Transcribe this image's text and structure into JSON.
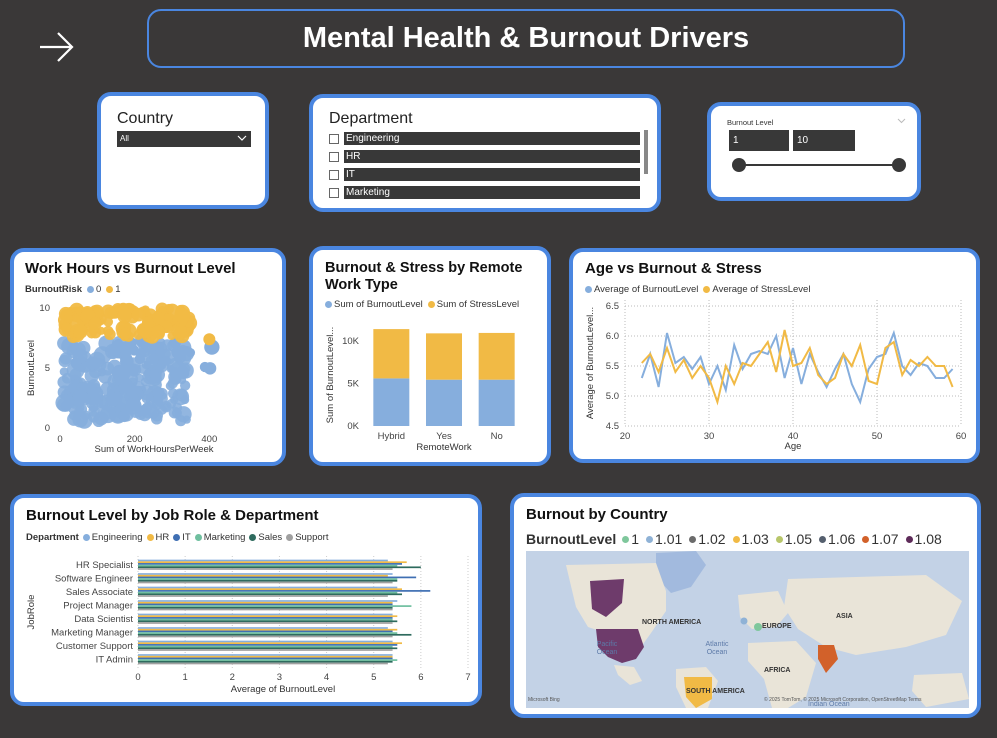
{
  "header": {
    "title": "Mental Health & Burnout Drivers"
  },
  "country_slicer": {
    "title": "Country",
    "value": "All"
  },
  "department_slicer": {
    "title": "Department",
    "items": [
      "Engineering",
      "HR",
      "IT",
      "Marketing"
    ]
  },
  "burnout_slicer": {
    "title": "Burnout Level",
    "min": "1",
    "max": "10",
    "range": [
      0,
      1
    ]
  },
  "colors": {
    "blue": "#86aedd",
    "gold": "#f1ba45",
    "accent": "#4a86e0",
    "dark": "#3a3838"
  },
  "chart_data": [
    {
      "id": "scatter",
      "type": "scatter",
      "title": "Work Hours vs Burnout Level",
      "legend_title": "BurnoutRisk",
      "series": [
        {
          "name": "0",
          "color": "#86aedd"
        },
        {
          "name": "1",
          "color": "#f1ba45"
        }
      ],
      "xlabel": "Sum of WorkHoursPerWeek",
      "ylabel": "BurnoutLevel",
      "xticks": [
        "0",
        "200",
        "400"
      ],
      "yticks": [
        "0",
        "5",
        "10"
      ],
      "xlim": [
        0,
        450
      ],
      "ylim": [
        0,
        10
      ]
    },
    {
      "id": "remote",
      "type": "bar",
      "title": "Burnout & Stress by Remote Work Type",
      "categories": [
        "Hybrid",
        "Yes",
        "No"
      ],
      "series": [
        {
          "name": "Sum of BurnoutLevel",
          "color": "#86aedd",
          "values": [
            5600,
            5450,
            5450
          ]
        },
        {
          "name": "Sum of StressLevel",
          "color": "#f1ba45",
          "values": [
            5800,
            5450,
            5500
          ]
        }
      ],
      "xlabel": "RemoteWork",
      "ylabel": "Sum of BurnoutLevel...",
      "yticks": [
        "0K",
        "5K",
        "10K"
      ],
      "ylim": [
        0,
        12000
      ]
    },
    {
      "id": "age",
      "type": "line",
      "title": "Age vs Burnout & Stress",
      "x": [
        22,
        23,
        24,
        25,
        26,
        27,
        28,
        29,
        30,
        31,
        32,
        33,
        34,
        35,
        36,
        37,
        38,
        39,
        40,
        41,
        42,
        43,
        44,
        45,
        46,
        47,
        48,
        49,
        50,
        51,
        52,
        53,
        54,
        55,
        56,
        57,
        58,
        59
      ],
      "series": [
        {
          "name": "Average of BurnoutLevel",
          "color": "#86aedd",
          "values": [
            5.3,
            5.7,
            5.15,
            6.05,
            5.55,
            5.65,
            5.45,
            5.65,
            5.2,
            5.5,
            5.1,
            5.85,
            5.45,
            5.7,
            5.75,
            5.7,
            6.0,
            5.3,
            5.8,
            5.2,
            5.7,
            5.4,
            5.15,
            5.45,
            5.7,
            5.2,
            4.9,
            5.45,
            5.65,
            5.7,
            6.05,
            5.5,
            5.35,
            5.55,
            5.5,
            5.3,
            5.3,
            5.45
          ]
        },
        {
          "name": "Average of StressLevel",
          "color": "#f1ba45",
          "values": [
            5.55,
            5.7,
            5.4,
            5.8,
            5.4,
            5.6,
            5.3,
            5.5,
            5.3,
            4.9,
            5.5,
            5.2,
            5.55,
            5.5,
            5.7,
            5.9,
            5.4,
            6.1,
            5.5,
            5.55,
            5.8,
            5.35,
            5.2,
            5.3,
            5.7,
            5.5,
            5.85,
            5.25,
            5.2,
            5.8,
            5.9,
            5.35,
            5.6,
            5.5,
            5.65,
            5.5,
            5.5,
            5.15
          ]
        }
      ],
      "xlabel": "Age",
      "ylabel": "Average of BurnoutLevel...",
      "xticks": [
        "20",
        "30",
        "40",
        "50",
        "60"
      ],
      "yticks": [
        "4.5",
        "5.0",
        "5.5",
        "6.0",
        "6.5"
      ],
      "xlim": [
        20,
        60
      ],
      "ylim": [
        4.5,
        6.6
      ]
    },
    {
      "id": "jobrole",
      "type": "bar",
      "orientation": "horizontal",
      "title": "Burnout Level by Job Role & Department",
      "legend_title": "Department",
      "categories": [
        "HR Specialist",
        "Software Engineer",
        "Sales Associate",
        "Project Manager",
        "Data Scientist",
        "Marketing Manager",
        "Customer Support",
        "IT Admin"
      ],
      "series": [
        {
          "name": "Engineering",
          "color": "#86aedd",
          "values": [
            5.3,
            5.4,
            5.5,
            5.5,
            5.4,
            5.3,
            5.4,
            5.4
          ]
        },
        {
          "name": "HR",
          "color": "#f1ba45",
          "values": [
            5.7,
            5.3,
            5.6,
            5.4,
            5.5,
            5.5,
            5.6,
            5.4
          ]
        },
        {
          "name": "IT",
          "color": "#3f6fb3",
          "values": [
            5.6,
            5.9,
            6.2,
            5.4,
            5.4,
            5.4,
            5.5,
            5.4
          ]
        },
        {
          "name": "Marketing",
          "color": "#6fbf9f",
          "values": [
            5.5,
            5.5,
            5.5,
            5.8,
            5.4,
            5.5,
            5.4,
            5.5
          ]
        },
        {
          "name": "Sales",
          "color": "#2e6b5e",
          "values": [
            6.0,
            5.5,
            5.6,
            5.4,
            5.5,
            5.8,
            5.5,
            5.4
          ]
        },
        {
          "name": "Support",
          "color": "#a0a0a0",
          "values": [
            5.4,
            5.4,
            5.3,
            5.4,
            5.4,
            5.4,
            5.4,
            5.3
          ]
        }
      ],
      "xlabel": "Average of BurnoutLevel",
      "ylabel": "JobRole",
      "xticks": [
        "0",
        "1",
        "2",
        "3",
        "4",
        "5",
        "6",
        "7"
      ],
      "xlim": [
        0,
        7
      ]
    },
    {
      "id": "country",
      "type": "map",
      "title": "Burnout by Country",
      "legend_title": "BurnoutLevel",
      "legend": [
        {
          "name": "1",
          "color": "#7fc79c"
        },
        {
          "name": "1.01",
          "color": "#8fb2d6"
        },
        {
          "name": "1.02",
          "color": "#6b6b6b"
        },
        {
          "name": "1.03",
          "color": "#f1ba45"
        },
        {
          "name": "1.05",
          "color": "#b8c66a"
        },
        {
          "name": "1.06",
          "color": "#555f6e"
        },
        {
          "name": "1.07",
          "color": "#d2612a"
        },
        {
          "name": "1.08",
          "color": "#5e2b59"
        }
      ],
      "labels": [
        "NORTH AMERICA",
        "EUROPE",
        "ASIA",
        "AFRICA",
        "SOUTH AMERICA",
        "Pacific Ocean",
        "Atlantic Ocean",
        "Indian Ocean"
      ],
      "credit": "© 2025 TomTom, © 2025 Microsoft Corporation, OpenStreetMap  Terms",
      "brand": "Microsoft Bing"
    }
  ]
}
